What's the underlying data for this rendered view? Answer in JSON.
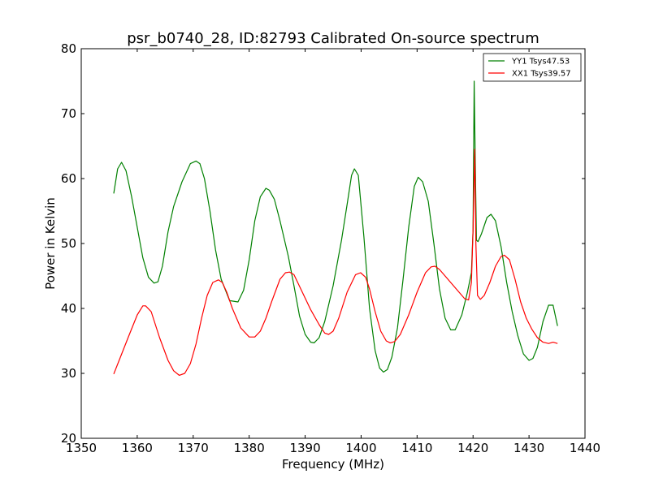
{
  "chart_data": {
    "type": "line",
    "title": "psr_b0740_28, ID:82793 Calibrated On-source spectrum",
    "xlabel": "Frequency (MHz)",
    "ylabel": "Power in Kelvin",
    "xlim": [
      1350,
      1440
    ],
    "ylim": [
      20,
      80
    ],
    "xticks": [
      "1350",
      "1360",
      "1370",
      "1380",
      "1390",
      "1400",
      "1410",
      "1420",
      "1430",
      "1440"
    ],
    "yticks": [
      "20",
      "30",
      "40",
      "50",
      "60",
      "70",
      "80"
    ],
    "grid": false,
    "legend_position": "top-right",
    "series": [
      {
        "name": "YY1 Tsys47.53",
        "color": "#008000",
        "x": [
          1355.8,
          1356.5,
          1357.2,
          1358.0,
          1359.0,
          1360.0,
          1361.0,
          1362.0,
          1363.0,
          1363.7,
          1364.5,
          1365.5,
          1366.5,
          1368.0,
          1369.5,
          1370.5,
          1371.2,
          1372.0,
          1373.0,
          1374.0,
          1375.0,
          1376.5,
          1378.0,
          1379.0,
          1380.0,
          1381.0,
          1382.0,
          1383.0,
          1383.6,
          1384.5,
          1385.5,
          1387.0,
          1388.0,
          1389.0,
          1390.0,
          1391.0,
          1391.6,
          1392.5,
          1393.5,
          1395.0,
          1396.5,
          1397.5,
          1398.3,
          1398.8,
          1399.5,
          1400.5,
          1401.5,
          1402.5,
          1403.3,
          1404.0,
          1404.7,
          1405.5,
          1406.5,
          1407.5,
          1408.5,
          1409.5,
          1410.2,
          1411.0,
          1412.0,
          1413.0,
          1414.0,
          1415.0,
          1416.0,
          1416.8,
          1418.0,
          1419.0,
          1419.7,
          1420.0,
          1420.2,
          1420.4,
          1420.6,
          1420.9,
          1421.5,
          1422.5,
          1423.2,
          1424.0,
          1425.0,
          1426.0,
          1427.0,
          1428.0,
          1429.0,
          1430.0,
          1430.7,
          1431.5,
          1432.5,
          1433.5,
          1434.3,
          1435.1
        ],
        "y": [
          57.7,
          61.5,
          62.5,
          61.2,
          57.2,
          52.5,
          47.8,
          44.8,
          43.9,
          44.1,
          46.5,
          51.8,
          55.7,
          59.5,
          62.3,
          62.7,
          62.3,
          60.0,
          55.0,
          49.0,
          44.5,
          41.2,
          41.0,
          42.8,
          47.5,
          53.5,
          57.2,
          58.5,
          58.2,
          56.8,
          53.5,
          48.0,
          43.5,
          38.8,
          36.0,
          34.8,
          34.7,
          35.5,
          38.0,
          43.5,
          50.5,
          56.0,
          60.5,
          61.5,
          60.5,
          51.0,
          40.0,
          33.5,
          30.8,
          30.2,
          30.6,
          32.5,
          37.0,
          44.5,
          52.5,
          58.8,
          60.2,
          59.5,
          56.5,
          50.0,
          43.0,
          38.5,
          36.7,
          36.7,
          39.0,
          42.5,
          45.5,
          52.0,
          75.0,
          62.0,
          50.5,
          50.3,
          51.5,
          54.0,
          54.5,
          53.5,
          49.5,
          44.0,
          39.5,
          35.8,
          33.0,
          32.0,
          32.3,
          34.0,
          38.0,
          40.5,
          40.5,
          37.3
        ]
      },
      {
        "name": "XX1 Tsys39.57",
        "color": "#ff0000",
        "x": [
          1355.8,
          1357.0,
          1358.5,
          1360.0,
          1361.0,
          1361.5,
          1362.5,
          1364.0,
          1365.5,
          1366.5,
          1367.5,
          1368.5,
          1369.5,
          1370.5,
          1371.5,
          1372.5,
          1373.5,
          1374.5,
          1375.2,
          1376.0,
          1377.0,
          1378.5,
          1380.0,
          1381.0,
          1382.0,
          1383.0,
          1384.0,
          1385.5,
          1386.5,
          1387.2,
          1388.0,
          1389.5,
          1391.0,
          1392.5,
          1393.5,
          1394.2,
          1395.0,
          1396.0,
          1397.5,
          1399.0,
          1399.9,
          1400.8,
          1401.5,
          1402.5,
          1403.5,
          1404.5,
          1405.2,
          1406.0,
          1407.0,
          1408.5,
          1410.0,
          1411.5,
          1412.5,
          1413.2,
          1414.0,
          1415.0,
          1416.5,
          1417.5,
          1418.5,
          1419.2,
          1419.7,
          1420.0,
          1420.3,
          1420.5,
          1420.8,
          1421.3,
          1422.0,
          1423.0,
          1424.0,
          1425.0,
          1425.6,
          1426.5,
          1427.5,
          1428.5,
          1429.5,
          1430.5,
          1431.5,
          1432.5,
          1433.5,
          1434.3,
          1435.1
        ],
        "y": [
          29.9,
          32.5,
          35.8,
          39.0,
          40.4,
          40.4,
          39.5,
          35.5,
          32.0,
          30.4,
          29.7,
          30.0,
          31.5,
          34.5,
          38.5,
          42.0,
          44.0,
          44.4,
          44.0,
          42.5,
          40.0,
          37.0,
          35.6,
          35.6,
          36.5,
          38.5,
          41.0,
          44.5,
          45.5,
          45.6,
          45.2,
          42.5,
          39.8,
          37.5,
          36.2,
          36.0,
          36.5,
          38.5,
          42.5,
          45.2,
          45.5,
          44.8,
          43.0,
          39.5,
          36.5,
          35.0,
          34.7,
          34.9,
          36.0,
          39.0,
          42.5,
          45.5,
          46.4,
          46.5,
          46.0,
          45.0,
          43.5,
          42.5,
          41.5,
          41.3,
          44.0,
          52.0,
          64.5,
          50.0,
          42.0,
          41.4,
          42.0,
          44.0,
          46.5,
          48.0,
          48.2,
          47.5,
          44.5,
          41.0,
          38.5,
          36.8,
          35.5,
          34.8,
          34.6,
          34.8,
          34.6
        ]
      }
    ]
  }
}
